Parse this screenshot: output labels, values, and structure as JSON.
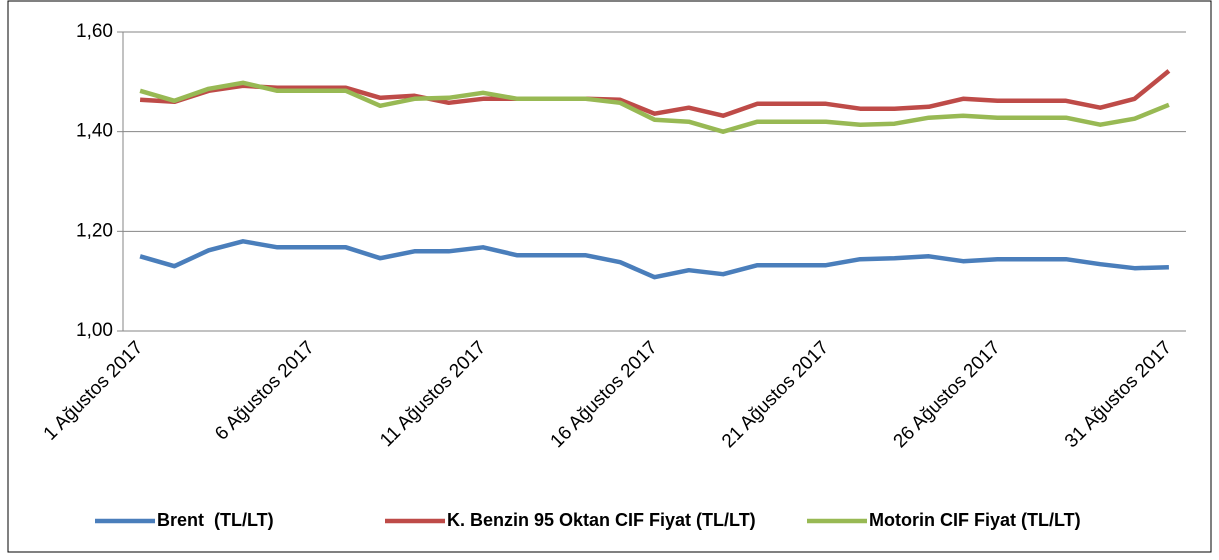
{
  "chart_data": {
    "type": "line",
    "categories": [
      "1 Ağustos 2017",
      null,
      null,
      null,
      null,
      "6 Ağustos 2017",
      null,
      null,
      null,
      null,
      "11 Ağustos 2017",
      null,
      null,
      null,
      null,
      "16 Ağustos 2017",
      null,
      null,
      null,
      null,
      "21 Ağustos 2017",
      null,
      null,
      null,
      null,
      "26 Ağustos 2017",
      null,
      null,
      null,
      null,
      "31 Ağustos 2017"
    ],
    "series": [
      {
        "name": "Brent  (TL/LT)",
        "color": "#4a7ebb",
        "values": [
          1.15,
          1.13,
          1.162,
          1.18,
          1.168,
          1.168,
          1.168,
          1.146,
          1.16,
          1.16,
          1.168,
          1.152,
          1.152,
          1.152,
          1.138,
          1.108,
          1.122,
          1.114,
          1.132,
          1.132,
          1.132,
          1.144,
          1.146,
          1.15,
          1.14,
          1.144,
          1.144,
          1.144,
          1.134,
          1.126,
          1.128
        ]
      },
      {
        "name": "K. Benzin 95 Oktan CIF Fiyat (TL/LT)",
        "color": "#be4b48",
        "values": [
          1.464,
          1.46,
          1.482,
          1.492,
          1.488,
          1.488,
          1.488,
          1.468,
          1.472,
          1.458,
          1.466,
          1.466,
          1.466,
          1.466,
          1.464,
          1.436,
          1.448,
          1.432,
          1.456,
          1.456,
          1.456,
          1.446,
          1.446,
          1.45,
          1.466,
          1.462,
          1.462,
          1.462,
          1.448,
          1.466,
          1.522
        ]
      },
      {
        "name": "Motorin CIF Fiyat (TL/LT)",
        "color": "#98b954",
        "values": [
          1.482,
          1.462,
          1.486,
          1.498,
          1.482,
          1.482,
          1.482,
          1.452,
          1.466,
          1.468,
          1.478,
          1.466,
          1.466,
          1.466,
          1.458,
          1.424,
          1.42,
          1.4,
          1.42,
          1.42,
          1.42,
          1.414,
          1.416,
          1.428,
          1.432,
          1.428,
          1.428,
          1.428,
          1.414,
          1.426,
          1.454
        ]
      }
    ],
    "ylim": [
      1.0,
      1.6
    ],
    "yticks": [
      {
        "value": 1.0,
        "label": "1,00"
      },
      {
        "value": 1.2,
        "label": "1,20"
      },
      {
        "value": 1.4,
        "label": "1,40"
      },
      {
        "value": 1.6,
        "label": "1,60"
      }
    ],
    "grid": true,
    "legend": "bottom"
  }
}
